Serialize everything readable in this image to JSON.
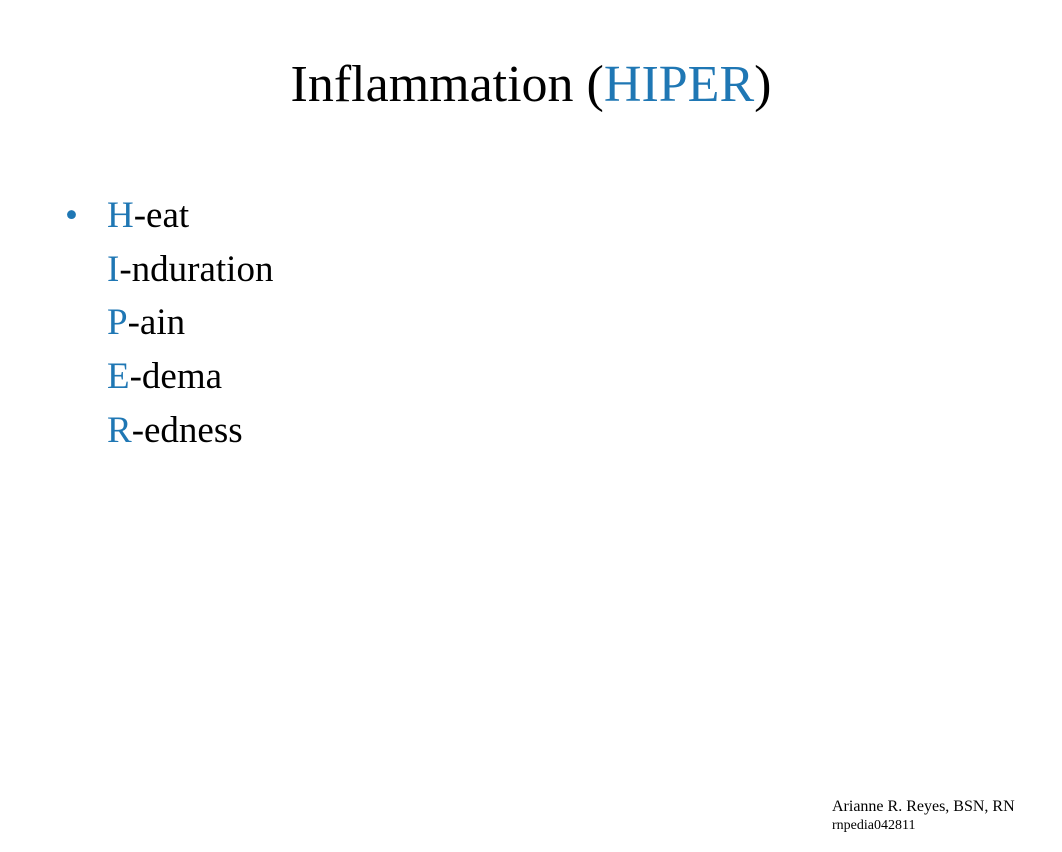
{
  "title": {
    "prefix": "Inflammation (",
    "accent": "HIPER",
    "suffix": ")"
  },
  "items": [
    {
      "letter": "H",
      "rest": "-eat"
    },
    {
      "letter": "I",
      "rest": "-nduration"
    },
    {
      "letter": "P",
      "rest": "-ain"
    },
    {
      "letter": "E",
      "rest": "-dema"
    },
    {
      "letter": "R",
      "rest": "-edness"
    }
  ],
  "footer": {
    "line1": "Arianne R. Reyes, BSN, RN",
    "line2": "rnpedia042811"
  },
  "colors": {
    "accent": "#1f77b4",
    "text": "#000000",
    "background": "#ffffff"
  }
}
